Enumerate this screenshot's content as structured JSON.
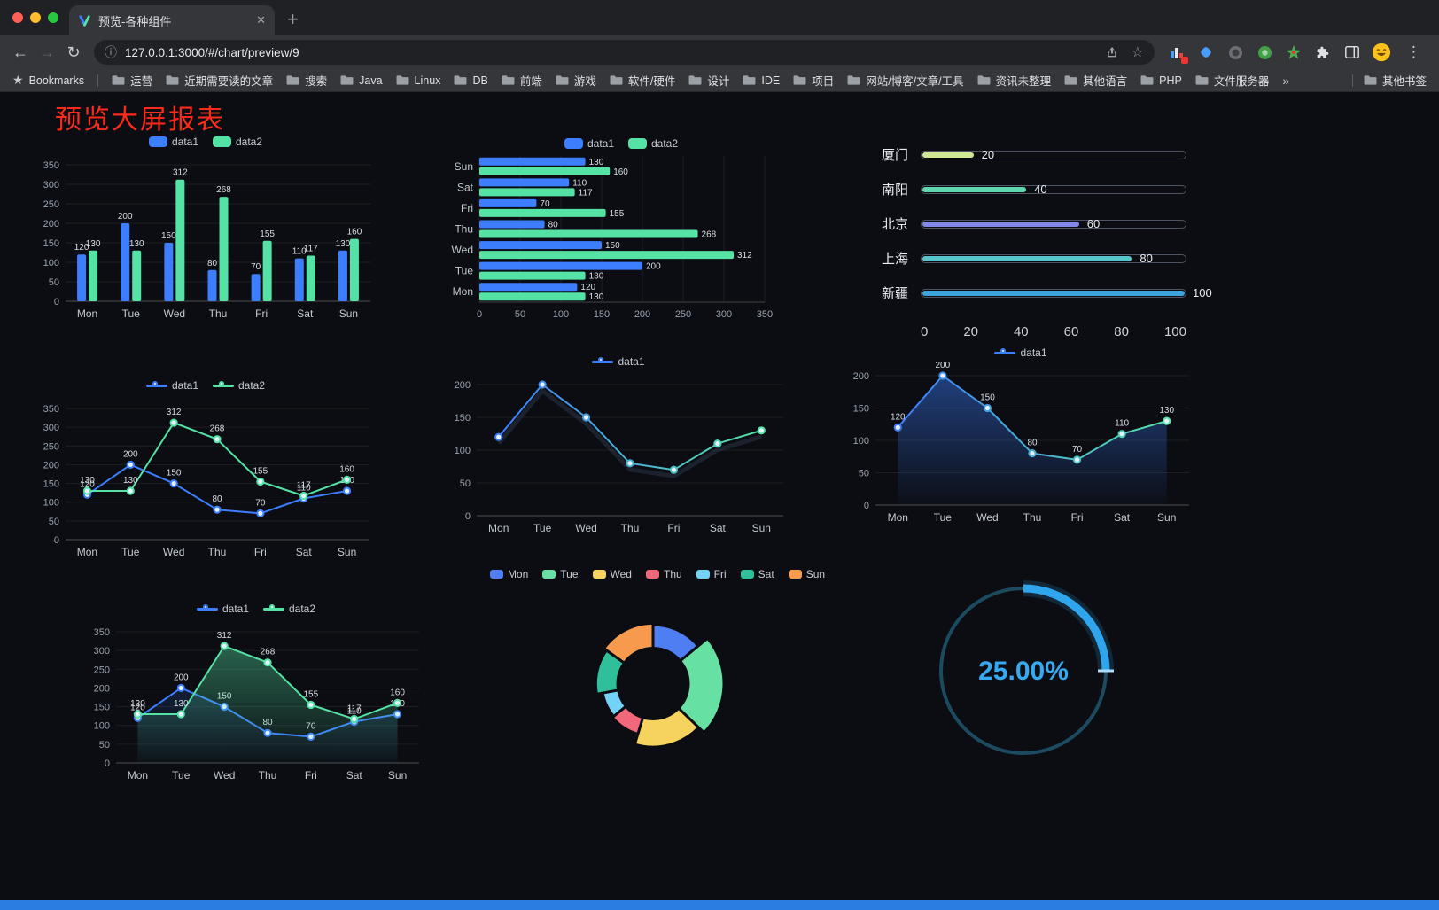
{
  "window": {
    "tab_title": "预览-各种组件",
    "url": "127.0.0.1:3000/#/chart/preview/9"
  },
  "icons": {
    "back": "←",
    "forward": "→",
    "reload": "↻",
    "info": "ⓘ",
    "star": "☆",
    "tab_close": "✕",
    "new_tab": "+",
    "menu": "⋮",
    "bookmarks_star": "★",
    "overflow": "»"
  },
  "bookmarks_bar": {
    "label": "Bookmarks",
    "folders": [
      "运营",
      "近期需要读的文章",
      "搜索",
      "Java",
      "Linux",
      "DB",
      "前端",
      "游戏",
      "软件/硬件",
      "设计",
      "IDE",
      "项目",
      "网站/博客/文章/工具",
      "资讯未整理",
      "其他语言",
      "PHP",
      "文件服务器"
    ],
    "other_label": "其他书签"
  },
  "page": {
    "title": "预览大屏报表"
  },
  "palette": {
    "blue": "#3d7eff",
    "green": "#54e2a5",
    "gauge_blue": "#2ea5ec",
    "title_red": "#fb2b1c"
  },
  "chart_data": [
    {
      "id": "grouped-bar",
      "type": "bar",
      "categories": [
        "Mon",
        "Tue",
        "Wed",
        "Thu",
        "Fri",
        "Sat",
        "Sun"
      ],
      "series": [
        {
          "name": "data1",
          "color": "#3d7eff",
          "values": [
            120,
            200,
            150,
            80,
            70,
            110,
            130
          ]
        },
        {
          "name": "data2",
          "color": "#54e2a5",
          "values": [
            130,
            130,
            312,
            268,
            155,
            117,
            160
          ]
        }
      ],
      "ylim": [
        0,
        350
      ],
      "ytick_step": 50,
      "labels": true
    },
    {
      "id": "horizontal-bar",
      "type": "hbar",
      "categories": [
        "Mon",
        "Tue",
        "Wed",
        "Thu",
        "Fri",
        "Sat",
        "Sun"
      ],
      "series": [
        {
          "name": "data1",
          "color": "#3d7eff",
          "values": [
            120,
            200,
            150,
            80,
            70,
            110,
            130
          ]
        },
        {
          "name": "data2",
          "color": "#54e2a5",
          "values": [
            130,
            130,
            312,
            268,
            155,
            117,
            160
          ]
        }
      ],
      "xlim": [
        0,
        350
      ],
      "xtick_step": 50,
      "labels": true
    },
    {
      "id": "progress-bars",
      "type": "progress",
      "max": 100,
      "xticks": [
        0,
        20,
        40,
        60,
        80,
        100
      ],
      "rows": [
        {
          "label": "厦门",
          "value": 20,
          "color": "#cfe993"
        },
        {
          "label": "南阳",
          "value": 40,
          "color": "#5fd8b0"
        },
        {
          "label": "北京",
          "value": 60,
          "color": "#8287e8"
        },
        {
          "label": "上海",
          "value": 80,
          "color": "#58c5cc"
        },
        {
          "label": "新疆",
          "value": 100,
          "color": "#3da4dc"
        }
      ]
    },
    {
      "id": "double-line",
      "type": "line",
      "categories": [
        "Mon",
        "Tue",
        "Wed",
        "Thu",
        "Fri",
        "Sat",
        "Sun"
      ],
      "series": [
        {
          "name": "data1",
          "color": "#3d7eff",
          "values": [
            120,
            200,
            150,
            80,
            70,
            110,
            130
          ]
        },
        {
          "name": "data2",
          "color": "#54e2a5",
          "values": [
            130,
            130,
            312,
            268,
            155,
            117,
            160
          ]
        }
      ],
      "ylim": [
        0,
        350
      ],
      "ytick_step": 50,
      "labels": true
    },
    {
      "id": "gradient-line",
      "type": "line",
      "categories": [
        "Mon",
        "Tue",
        "Wed",
        "Thu",
        "Fri",
        "Sat",
        "Sun"
      ],
      "series": [
        {
          "name": "data1",
          "gradient": [
            "#3d7eff",
            "#54e2a5"
          ],
          "shadow": true,
          "values": [
            120,
            200,
            150,
            80,
            70,
            110,
            130
          ]
        }
      ],
      "ylim": [
        0,
        200
      ],
      "ytick_step": 50,
      "labels": false
    },
    {
      "id": "gradient-area-line",
      "type": "line",
      "categories": [
        "Mon",
        "Tue",
        "Wed",
        "Thu",
        "Fri",
        "Sat",
        "Sun"
      ],
      "series": [
        {
          "name": "data1",
          "gradient": [
            "#3d7eff",
            "#54e2a5"
          ],
          "area": true,
          "area_opacity": 0.45,
          "values": [
            120,
            200,
            150,
            80,
            70,
            110,
            130
          ]
        }
      ],
      "ylim": [
        0,
        200
      ],
      "ytick_step": 50,
      "labels": true
    },
    {
      "id": "double-line-area",
      "type": "line",
      "categories": [
        "Mon",
        "Tue",
        "Wed",
        "Thu",
        "Fri",
        "Sat",
        "Sun"
      ],
      "series": [
        {
          "name": "data1",
          "color": "#3d7eff",
          "area": true,
          "area_opacity": 0.15,
          "values": [
            120,
            200,
            150,
            80,
            70,
            110,
            130
          ]
        },
        {
          "name": "data2",
          "color": "#54e2a5",
          "area": true,
          "area_opacity": 0.4,
          "values": [
            130,
            130,
            312,
            268,
            155,
            117,
            160
          ]
        }
      ],
      "ylim": [
        0,
        350
      ],
      "ytick_step": 50,
      "labels": true
    },
    {
      "id": "rose-pie",
      "type": "rose",
      "items": [
        {
          "label": "Mon",
          "value": 120,
          "color": "#4f7ef2"
        },
        {
          "label": "Tue",
          "value": 200,
          "color": "#67e0a3"
        },
        {
          "label": "Wed",
          "value": 150,
          "color": "#f6d25e"
        },
        {
          "label": "Thu",
          "value": 80,
          "color": "#f2687b"
        },
        {
          "label": "Fri",
          "value": 70,
          "color": "#74d2f7"
        },
        {
          "label": "Sat",
          "value": 110,
          "color": "#2fbf9a"
        },
        {
          "label": "Sun",
          "value": 130,
          "color": "#f79a4d"
        }
      ]
    },
    {
      "id": "gauge",
      "type": "gauge",
      "value": 25,
      "display": "25.00%",
      "color": "#2ea5ec",
      "track_color": "#1c4a5f",
      "text_color": "#35aaf0"
    }
  ]
}
